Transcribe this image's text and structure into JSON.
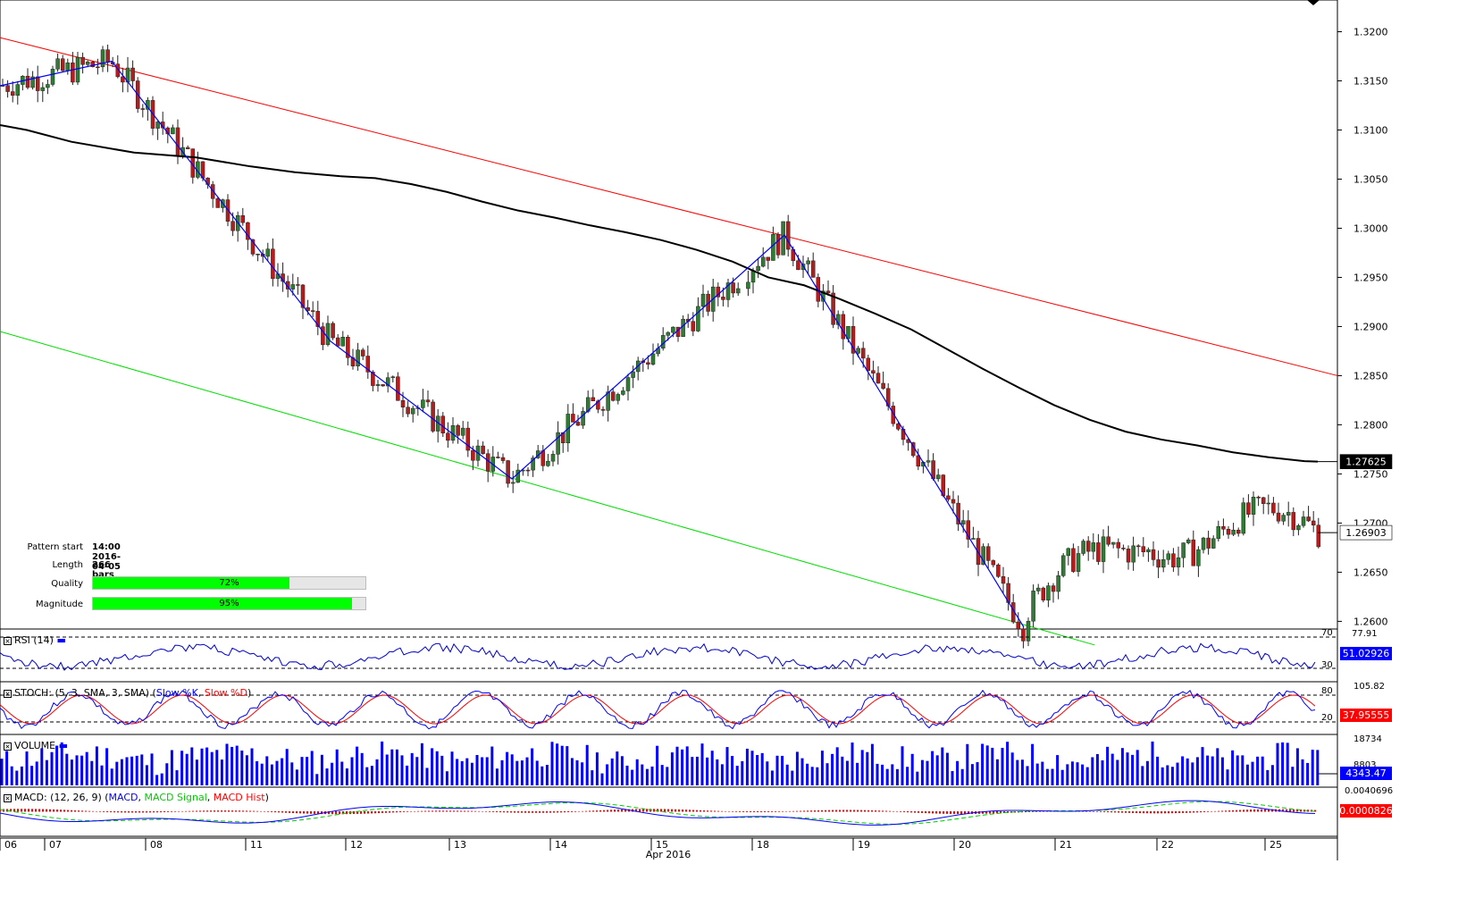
{
  "chart_data": {
    "type": "candlestick",
    "instrument_price_axis": [
      "1.3200",
      "1.3150",
      "1.3100",
      "1.3050",
      "1.3000",
      "1.2950",
      "1.2900",
      "1.2850",
      "1.2800",
      "1.2750",
      "1.2700",
      "1.2650",
      "1.2600"
    ],
    "ylim": [
      1.2594,
      1.3225
    ],
    "x_day_labels": [
      "06",
      "07",
      "08",
      "11",
      "12",
      "13",
      "14",
      "15",
      "18",
      "19",
      "20",
      "21",
      "22",
      "25"
    ],
    "x_month_label": "Apr 2016",
    "badges": {
      "ma": "1.27625",
      "last_price": "1.26903"
    },
    "ma_path": [
      [
        0,
        1.3105
      ],
      [
        30,
        1.31
      ],
      [
        80,
        1.3088
      ],
      [
        150,
        1.3077
      ],
      [
        220,
        1.3072
      ],
      [
        280,
        1.3063
      ],
      [
        330,
        1.3057
      ],
      [
        380,
        1.3053
      ],
      [
        420,
        1.3051
      ],
      [
        460,
        1.3045
      ],
      [
        500,
        1.3037
      ],
      [
        540,
        1.3027
      ],
      [
        580,
        1.3018
      ],
      [
        620,
        1.3011
      ],
      [
        660,
        1.3003
      ],
      [
        700,
        1.2996
      ],
      [
        740,
        1.2988
      ],
      [
        780,
        1.2978
      ],
      [
        820,
        1.2966
      ],
      [
        860,
        1.295
      ],
      [
        900,
        1.2942
      ],
      [
        940,
        1.2928
      ],
      [
        980,
        1.2913
      ],
      [
        1020,
        1.2897
      ],
      [
        1060,
        1.2877
      ],
      [
        1100,
        1.2857
      ],
      [
        1140,
        1.2838
      ],
      [
        1180,
        1.282
      ],
      [
        1220,
        1.2805
      ],
      [
        1260,
        1.2793
      ],
      [
        1300,
        1.2785
      ],
      [
        1340,
        1.2779
      ],
      [
        1380,
        1.2772
      ],
      [
        1420,
        1.2767
      ],
      [
        1460,
        1.2763
      ],
      [
        1475,
        1.27625
      ]
    ],
    "upper_channel": [
      [
        0,
        1.3194
      ],
      [
        1497,
        1.285
      ]
    ],
    "lower_channel": [
      [
        0,
        1.2895
      ],
      [
        1225,
        1.2576
      ]
    ],
    "zigzag": [
      [
        0,
        1.3145
      ],
      [
        125,
        1.317
      ],
      [
        370,
        1.2885
      ],
      [
        573,
        1.2745
      ],
      [
        878,
        1.2993
      ],
      [
        1146,
        1.2594
      ]
    ],
    "pattern": {
      "labels": {
        "start": "Pattern start",
        "length": "Length",
        "quality": "Quality",
        "magnitude": "Magnitude"
      },
      "start": "14:00 2016-04-05",
      "length": "266 bars",
      "quality": 72,
      "quality_label": "72%",
      "magnitude": 95,
      "magnitude_label": "95%"
    }
  },
  "panels": {
    "rsi": {
      "label": "RSI (14)",
      "levels": [
        "70",
        "30"
      ],
      "scale_top": "77.91",
      "value": "51.02926"
    },
    "stoch": {
      "label_main": "STOCH: (5, 3, SMA, 3, SMA) (",
      "k": "Slow %K",
      "sep": ", ",
      "d": "Slow %D",
      "close": ")",
      "levels": [
        "80",
        "20"
      ],
      "scale_top": "105.82",
      "value": "37.95555"
    },
    "volume": {
      "label": "VOLUME",
      "scale_top": "18734",
      "mid": "8803",
      "value": "4343.47"
    },
    "macd": {
      "label_main": "MACD: (12, 26, 9) (",
      "m": "MACD",
      "s": "MACD Signal",
      "h": "MACD Hist",
      "sep": ", ",
      "close": ")",
      "scale_top": "0.0040696",
      "value": "0.0000826"
    }
  },
  "colors": {
    "bull": "#2e7d32",
    "bear": "#b71c1c",
    "ma": "#000000",
    "upper": "#ff0000",
    "lower": "#00dd00",
    "zigzag": "#0000ff",
    "rsi": "#0000cc",
    "stoch_k": "#0000ff",
    "stoch_d": "#ff0000",
    "volume": "#0000ff",
    "macd": "#0000ff",
    "signal": "#00cc00",
    "hist": "#ff0000",
    "badge_ma": "#000000",
    "badge_rsi": "#0000ff",
    "badge_stoch": "#ff0000",
    "badge_vol": "#0000ff",
    "badge_macd": "#ff0000"
  }
}
